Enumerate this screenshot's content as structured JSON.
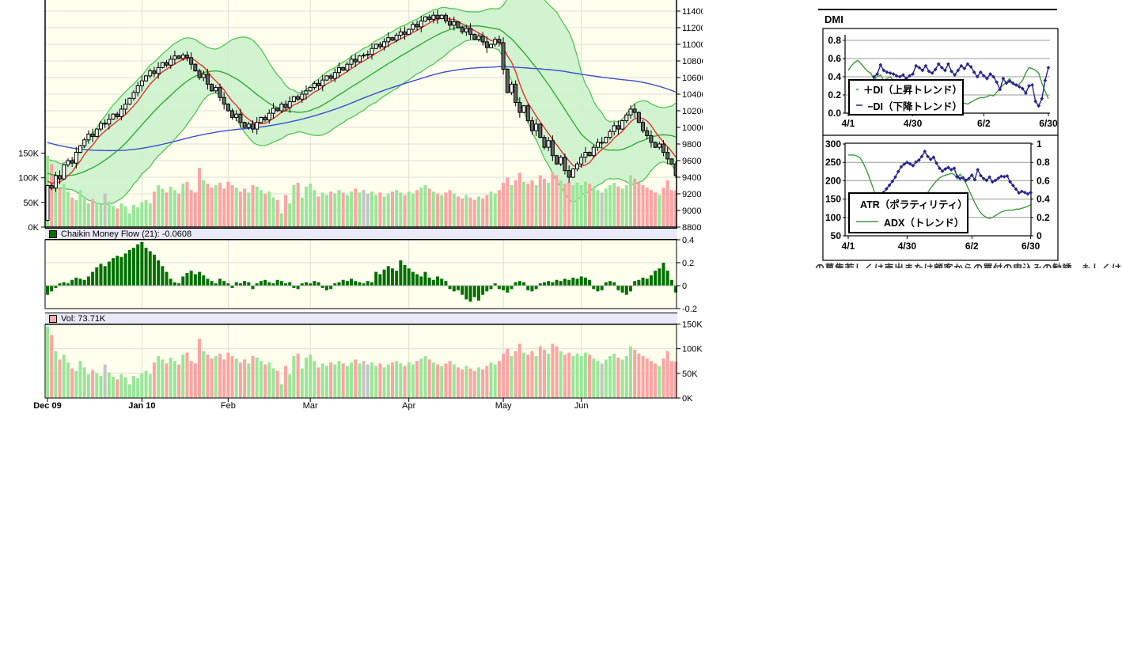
{
  "left_chart": {
    "cmf_header_label": "Chaikin Money Flow (21): -0.0608",
    "vol_header_label": "Vol: 73.71K",
    "colors": {
      "plot_bg": "#FFFFEE",
      "grid": "#DCDCDC",
      "axis": "#000000",
      "band_fill": "#CCF2CC",
      "band_edge": "#55C455",
      "sma_fast": "#E03232",
      "sma_mid": "#33AA33",
      "sma_slow": "#3A4FD0",
      "candle_up": "#FFFFFF",
      "candle_down": "#666666",
      "candle_border": "#000000",
      "vol_up": "#99E699",
      "vol_down": "#FFA3A3",
      "vol_flat": "#C4C4C4",
      "cmf_bar": "#007000",
      "header_bg": "#E9E9F8",
      "vol_swatch": "#FFAAAA"
    }
  },
  "right_panel": {
    "title": "DMI",
    "disclaimer_clipped": "の募集若しくは売出または顧客からの買付の申込みの勧誘、もしくは顧客に対するものではありません"
  },
  "chart_data": [
    {
      "type": "candlestick",
      "title": "",
      "price_axis": {
        "min": 8800,
        "max": 11400,
        "step": 200,
        "side": "right"
      },
      "volume_overlay_axis": {
        "min": 0,
        "max": 150,
        "tick_step": 50,
        "tick_labels": [
          "150K",
          "100K",
          "50K",
          "0K"
        ]
      },
      "months": [
        {
          "label": "Dec 09",
          "day": 0,
          "bold": true
        },
        {
          "label": "Jan 10",
          "day": 23,
          "bold": true
        },
        {
          "label": "Feb",
          "day": 44,
          "bold": false
        },
        {
          "label": "Mar",
          "day": 64,
          "bold": false
        },
        {
          "label": "Apr",
          "day": 88,
          "bold": false
        },
        {
          "label": "May",
          "day": 111,
          "bold": false
        },
        {
          "label": "Jun",
          "day": 130,
          "bold": false
        }
      ],
      "open_first": 8880,
      "pre_closes": [
        10350,
        10320,
        10360,
        10300,
        10280,
        10310,
        10250,
        10220,
        10260,
        10200,
        10180,
        10210,
        10160,
        10130,
        10170,
        10150,
        10120,
        10080,
        10110,
        10060,
        10030,
        10070,
        10020,
        9990,
        10050,
        9970,
        9940,
        9980,
        9930,
        9900,
        9950,
        9920,
        9890,
        9860,
        9900,
        9850,
        9820,
        9860,
        9810,
        9780,
        9820,
        9770,
        9740,
        9780,
        9730,
        9700,
        9740,
        9690,
        9660,
        9700,
        9650,
        9620,
        9660,
        9610,
        9580,
        9620,
        9570,
        9540,
        9580,
        9530,
        9500,
        9540,
        9490,
        9460,
        9500,
        9450,
        9420,
        9460,
        9410,
        9380,
        9420,
        9370,
        9340,
        9380,
        9310
      ],
      "closes": [
        9300,
        9270,
        9420,
        9380,
        9550,
        9600,
        9570,
        9700,
        9780,
        9850,
        9920,
        9890,
        9980,
        10050,
        10040,
        10100,
        10160,
        10130,
        10220,
        10280,
        10350,
        10420,
        10500,
        10560,
        10620,
        10680,
        10650,
        10720,
        10780,
        10750,
        10820,
        10860,
        10830,
        10870,
        10840,
        10760,
        10680,
        10600,
        10640,
        10520,
        10440,
        10480,
        10360,
        10280,
        10200,
        10120,
        10160,
        10060,
        10000,
        10040,
        9980,
        10060,
        10120,
        10090,
        10170,
        10230,
        10200,
        10280,
        10240,
        10310,
        10370,
        10340,
        10400,
        10440,
        10480,
        10530,
        10500,
        10570,
        10620,
        10590,
        10660,
        10720,
        10690,
        10760,
        10820,
        10790,
        10860,
        10870,
        10880,
        10950,
        11000,
        10970,
        11030,
        11080,
        11050,
        11110,
        11150,
        11120,
        11180,
        11240,
        11210,
        11280,
        11330,
        11300,
        11350,
        11310,
        11350,
        11280,
        11230,
        11270,
        11200,
        11150,
        11190,
        11120,
        11060,
        11100,
        11030,
        10960,
        11000,
        11060,
        11020,
        10700,
        10420,
        10520,
        10300,
        10180,
        10260,
        10080,
        9960,
        10040,
        9880,
        9760,
        9840,
        9660,
        9560,
        9640,
        9480,
        9400,
        9500,
        9560,
        9640,
        9700,
        9660,
        9760,
        9820,
        9815,
        9880,
        9950,
        10020,
        9980,
        10080,
        10150,
        10220,
        10180,
        10060,
        9960,
        9900,
        9820,
        9760,
        9800,
        9700,
        9620,
        9560,
        9420
      ],
      "volumes_k": [
        145,
        128,
        95,
        78,
        88,
        72,
        60,
        55,
        75,
        62,
        48,
        57,
        50,
        45,
        68,
        52,
        43,
        38,
        48,
        42,
        28,
        45,
        40,
        50,
        55,
        48,
        72,
        85,
        78,
        70,
        82,
        75,
        68,
        88,
        92,
        75,
        70,
        120,
        95,
        88,
        80,
        85,
        90,
        78,
        92,
        85,
        80,
        72,
        78,
        70,
        85,
        82,
        75,
        68,
        72,
        60,
        55,
        28,
        65,
        48,
        85,
        90,
        60,
        82,
        88,
        75,
        62,
        70,
        65,
        72,
        68,
        75,
        70,
        65,
        72,
        78,
        70,
        75,
        68,
        72,
        65,
        70,
        62,
        68,
        72,
        75,
        70,
        65,
        72,
        68,
        75,
        80,
        85,
        78,
        72,
        68,
        65,
        70,
        75,
        68,
        62,
        58,
        65,
        60,
        55,
        62,
        58,
        65,
        72,
        68,
        75,
        90,
        100,
        85,
        95,
        110,
        92,
        88,
        95,
        85,
        105,
        98,
        90,
        110,
        105,
        95,
        88,
        92,
        85,
        90,
        85,
        92,
        88,
        80,
        75,
        70,
        78,
        85,
        90,
        82,
        78,
        85,
        105,
        98,
        90,
        85,
        80,
        75,
        70,
        65,
        80,
        95,
        75,
        74
      ],
      "overlays": {
        "sma_fast_n": 6,
        "sma_mid_n": 20,
        "sma_slow_n": 75,
        "bollinger_n": 20,
        "bollinger_k": 2.0
      }
    },
    {
      "type": "bar",
      "label": "Chaikin Money Flow (21): -0.0608",
      "axis": {
        "min": -0.2,
        "max": 0.4,
        "ticks": [
          "0.4",
          "0.2",
          "0",
          "-0.2"
        ]
      },
      "values": [
        -0.08,
        -0.05,
        -0.02,
        0.02,
        0.03,
        0.02,
        0.05,
        0.07,
        0.06,
        0.05,
        0.08,
        0.12,
        0.16,
        0.19,
        0.17,
        0.21,
        0.24,
        0.26,
        0.25,
        0.28,
        0.31,
        0.33,
        0.36,
        0.38,
        0.33,
        0.3,
        0.27,
        0.22,
        0.17,
        0.12,
        0.06,
        0.03,
        0.02,
        0.08,
        0.11,
        0.13,
        0.1,
        0.12,
        0.09,
        0.06,
        0.04,
        0.02,
        0.06,
        0.04,
        0.02,
        -0.02,
        0.03,
        0.02,
        0.04,
        0.03,
        -0.03,
        0.02,
        0.04,
        0.05,
        0.03,
        0.02,
        0.05,
        0.04,
        0.02,
        0.03,
        -0.02,
        -0.03,
        0.02,
        0.03,
        0.02,
        0.04,
        0.03,
        -0.02,
        -0.04,
        -0.03,
        0.02,
        0.03,
        0.05,
        0.04,
        0.06,
        0.04,
        0.03,
        0.02,
        0.04,
        0.03,
        0.12,
        0.1,
        0.14,
        0.17,
        0.15,
        0.13,
        0.22,
        0.18,
        0.15,
        0.12,
        0.1,
        0.08,
        0.12,
        0.07,
        0.05,
        0.08,
        0.06,
        0.04,
        -0.03,
        -0.05,
        -0.04,
        -0.08,
        -0.12,
        -0.14,
        -0.1,
        -0.13,
        -0.08,
        -0.05,
        -0.03,
        0.02,
        -0.03,
        -0.04,
        -0.06,
        -0.03,
        0.03,
        0.04,
        0.03,
        -0.04,
        -0.05,
        -0.03,
        0.02,
        0.03,
        0.04,
        0.03,
        0.05,
        0.04,
        0.06,
        0.05,
        0.07,
        0.06,
        0.08,
        0.07,
        0.05,
        -0.03,
        -0.05,
        -0.04,
        0.03,
        0.04,
        0.03,
        -0.04,
        -0.06,
        -0.08,
        -0.05,
        0.04,
        0.05,
        0.07,
        0.06,
        0.09,
        0.13,
        0.15,
        0.2,
        0.13,
        0.05,
        -0.06
      ]
    },
    {
      "type": "bar",
      "label": "Vol: 73.71K",
      "axis": {
        "min": 0,
        "max": 150,
        "ticks": [
          "150K",
          "100K",
          "50K",
          "0K"
        ]
      },
      "values_from": "main.volumes_k"
    },
    {
      "type": "line",
      "title": "DMI",
      "x": {
        "labels": [
          "4/1",
          "4/30",
          "6/2",
          "6/30"
        ],
        "label_days": [
          0,
          20,
          42,
          62
        ],
        "n": 63
      },
      "y": {
        "min": 0.0,
        "max": 0.86,
        "ticks": [
          [
            "0.8",
            0.8
          ],
          [
            "0.6",
            0.6
          ],
          [
            "0.4",
            0.4
          ],
          [
            "0.2",
            0.2
          ],
          [
            "0.0",
            0.0
          ]
        ]
      },
      "legend_position": "left-middle",
      "series": [
        {
          "name": "＋DI（上昇トレンド）",
          "color": "#3C9A3C",
          "marker": "none",
          "values": [
            0.47,
            0.52,
            0.56,
            0.58,
            0.54,
            0.5,
            0.46,
            0.44,
            0.37,
            0.4,
            0.42,
            0.36,
            0.38,
            0.4,
            0.36,
            0.33,
            0.3,
            0.28,
            0.26,
            0.25,
            0.24,
            0.25,
            0.23,
            0.21,
            0.2,
            0.21,
            0.22,
            0.2,
            0.19,
            0.18,
            0.17,
            0.15,
            0.08,
            0.01,
            0.05,
            0.1,
            0.11,
            0.1,
            0.12,
            0.14,
            0.16,
            0.17,
            0.17,
            0.18,
            0.2,
            0.19,
            0.23,
            0.27,
            0.31,
            0.34,
            0.38,
            0.32,
            0.3,
            0.32,
            0.36,
            0.44,
            0.5,
            0.49,
            0.47,
            0.44,
            0.33,
            0.24,
            0.16
          ]
        },
        {
          "name": "−DI（下降トレンド）",
          "color": "#26268C",
          "marker": "diamond",
          "values": [
            null,
            null,
            null,
            null,
            null,
            null,
            null,
            null,
            0.4,
            0.43,
            0.53,
            0.47,
            0.45,
            0.44,
            0.43,
            0.41,
            0.4,
            0.42,
            0.38,
            0.41,
            0.43,
            0.52,
            0.5,
            0.47,
            0.52,
            0.46,
            0.44,
            0.48,
            0.54,
            0.5,
            0.47,
            0.54,
            0.46,
            0.42,
            0.47,
            0.52,
            0.49,
            0.54,
            0.51,
            0.45,
            0.4,
            0.45,
            0.41,
            0.38,
            0.43,
            0.4,
            0.34,
            0.26,
            0.38,
            0.33,
            0.35,
            0.33,
            0.31,
            0.29,
            0.27,
            0.22,
            0.3,
            0.31,
            0.13,
            0.08,
            0.16,
            0.36,
            0.5
          ]
        }
      ]
    },
    {
      "type": "line",
      "title": "",
      "x": {
        "labels": [
          "4/1",
          "4/30",
          "6/2",
          "6/30"
        ],
        "label_days": [
          0,
          20,
          42,
          62
        ],
        "n": 63
      },
      "y_left": {
        "min": 50,
        "max": 300,
        "ticks": [
          "300",
          "250",
          "200",
          "150",
          "100",
          "50"
        ]
      },
      "y_right": {
        "min": 0,
        "max": 1,
        "ticks": [
          "1",
          "0.8",
          "0.6",
          "0.4",
          "0.2",
          "0"
        ]
      },
      "legend_position": "left-bottom",
      "series": [
        {
          "name": "ATR（ポラティリティ）",
          "color": "#26268C",
          "marker": "diamond",
          "axis": "left",
          "values": [
            null,
            null,
            null,
            null,
            null,
            null,
            null,
            null,
            null,
            null,
            155,
            160,
            168,
            178,
            188,
            198,
            210,
            225,
            238,
            245,
            250,
            246,
            241,
            251,
            256,
            266,
            280,
            266,
            258,
            264,
            248,
            234,
            226,
            232,
            236,
            230,
            234,
            212,
            206,
            208,
            201,
            206,
            215,
            203,
            230,
            214,
            206,
            201,
            210,
            197,
            201,
            207,
            212,
            211,
            213,
            197,
            187,
            177,
            167,
            171,
            168,
            164,
            168
          ]
        },
        {
          "name": "ADX（トレンド）",
          "color": "#3C9A3C",
          "marker": "none",
          "axis": "right",
          "values": [
            0.88,
            0.88,
            0.88,
            0.87,
            0.85,
            0.8,
            0.73,
            0.65,
            0.56,
            0.47,
            0.4,
            0.34,
            0.29,
            0.26,
            0.23,
            0.21,
            0.2,
            0.2,
            0.21,
            0.22,
            0.24,
            0.26,
            0.29,
            0.32,
            0.35,
            0.39,
            0.43,
            0.47,
            0.52,
            0.56,
            0.6,
            0.63,
            0.65,
            0.66,
            0.67,
            0.68,
            0.67,
            0.62,
            0.67,
            0.63,
            0.57,
            0.5,
            0.43,
            0.36,
            0.3,
            0.25,
            0.22,
            0.2,
            0.19,
            0.2,
            0.22,
            0.24,
            0.26,
            0.27,
            0.28,
            0.28,
            0.28,
            0.29,
            0.29,
            0.3,
            0.31,
            0.32,
            0.34
          ]
        }
      ]
    }
  ]
}
